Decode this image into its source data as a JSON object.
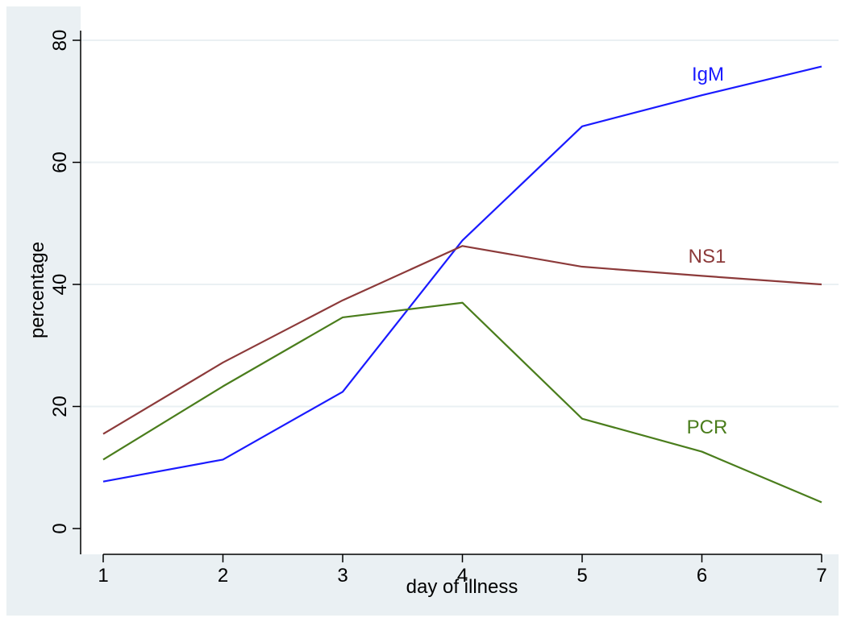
{
  "chart_data": {
    "type": "line",
    "title": "",
    "xlabel": "day of illness",
    "ylabel": "percentage",
    "x": [
      1,
      2,
      3,
      4,
      5,
      6,
      7
    ],
    "xticks": [
      "1",
      "2",
      "3",
      "4",
      "5",
      "6",
      "7"
    ],
    "xlim": [
      1,
      7
    ],
    "yticks": [
      "0",
      "20",
      "40",
      "60",
      "80"
    ],
    "ylim": [
      0,
      80
    ],
    "grid": true,
    "series": [
      {
        "name": "IgM",
        "color": "#1a1aff",
        "values": [
          7.7,
          11.3,
          22.4,
          47.2,
          65.9,
          71.0,
          75.7
        ]
      },
      {
        "name": "NS1",
        "color": "#8c3a3a",
        "values": [
          15.5,
          27.2,
          37.4,
          46.3,
          42.9,
          41.4,
          40.0
        ]
      },
      {
        "name": "PCR",
        "color": "#4a7d1c",
        "values": [
          11.3,
          23.3,
          34.6,
          37.0,
          18.0,
          12.6,
          4.3
        ]
      }
    ]
  }
}
